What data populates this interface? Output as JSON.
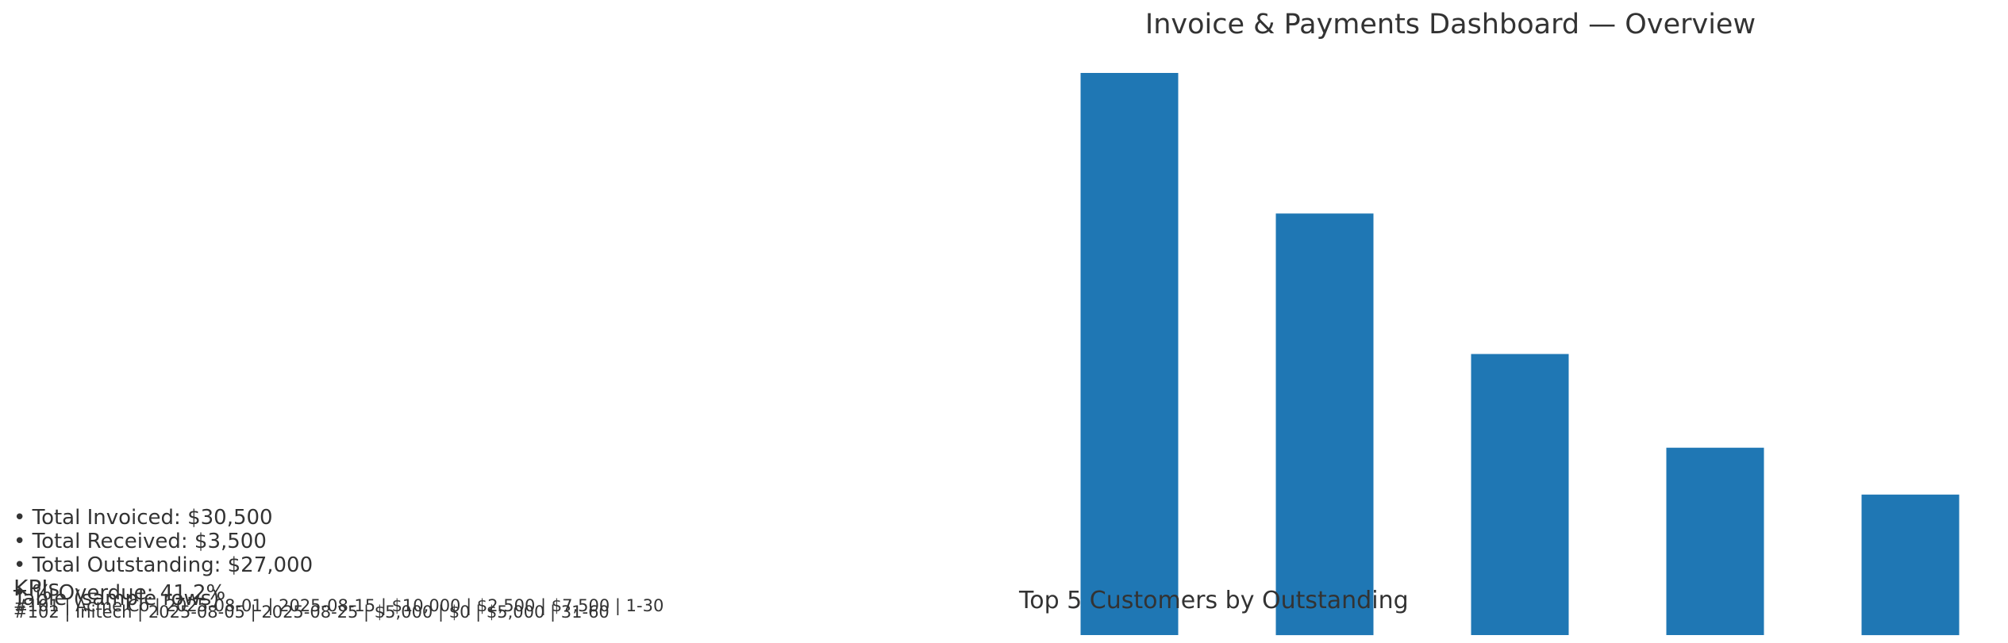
{
  "title": "Invoice & Payments Dashboard — Overview",
  "kpis": {
    "heading": "KPIs",
    "items": [
      "• Total Invoiced: $30,500",
      "• Total Received: $3,500",
      "• Total Outstanding: $27,000"
    ],
    "overdue": "• % Overdue: 41.2%"
  },
  "table": {
    "heading": "Table (sample rows)",
    "rows": [
      "#101 | Acme Co | 2025-08-01 | 2025-08-15 | $10,000 | $2,500 | $7,500 | 1-30",
      "#102 | Initech | 2025-08-05 | 2025-08-25 | $5,000 | $0 | $5,000 | 31-60"
    ]
  },
  "chart_data": {
    "type": "bar",
    "title": "Top 5 Customers by Outstanding",
    "categories": [
      "",
      "",
      "",
      "",
      ""
    ],
    "values": [
      12000,
      9000,
      6000,
      4000,
      3000
    ],
    "color": "#1f77b4",
    "axes_visible": false,
    "grid": false
  }
}
